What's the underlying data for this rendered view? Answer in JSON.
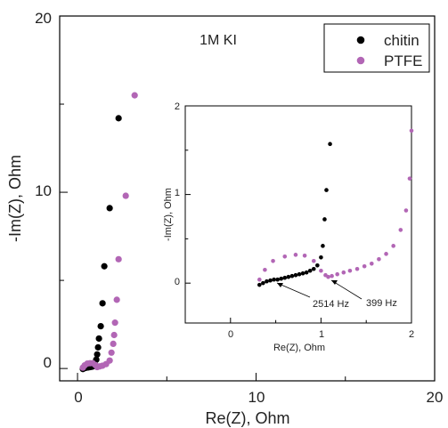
{
  "chart_data": [
    {
      "type": "scatter",
      "title": "",
      "xlabel": "Re(Z), Ohm",
      "ylabel": "-Im(Z), Ohm",
      "xlim": [
        -1,
        20
      ],
      "ylim": [
        -0.7,
        20
      ],
      "xticks": [
        "0",
        "10",
        "20"
      ],
      "yticks": [
        "0",
        "10",
        "20"
      ],
      "annotation": "1M KI",
      "legend": {
        "placement": "top-right",
        "entries": [
          "chitin",
          "PTFE"
        ]
      },
      "series": [
        {
          "name": "chitin",
          "color": "#000000",
          "points": [
            [
              0.3,
              -0.03
            ],
            [
              0.35,
              0.0
            ],
            [
              0.42,
              0.03
            ],
            [
              0.5,
              0.05
            ],
            [
              0.6,
              0.06
            ],
            [
              0.7,
              0.08
            ],
            [
              0.8,
              0.1
            ],
            [
              0.9,
              0.13
            ],
            [
              1.0,
              0.2
            ],
            [
              1.05,
              0.5
            ],
            [
              1.1,
              0.8
            ],
            [
              1.15,
              1.2
            ],
            [
              1.2,
              1.7
            ],
            [
              1.3,
              2.4
            ],
            [
              1.4,
              3.7
            ],
            [
              1.5,
              5.8
            ],
            [
              1.8,
              9.1
            ],
            [
              2.3,
              14.2
            ]
          ]
        },
        {
          "name": "PTFE",
          "color": "#b266b5",
          "points": [
            [
              0.3,
              0.05
            ],
            [
              0.4,
              0.18
            ],
            [
              0.55,
              0.28
            ],
            [
              0.7,
              0.3
            ],
            [
              0.85,
              0.3
            ],
            [
              1.0,
              0.2
            ],
            [
              1.1,
              0.08
            ],
            [
              1.25,
              0.12
            ],
            [
              1.4,
              0.16
            ],
            [
              1.6,
              0.25
            ],
            [
              1.8,
              0.45
            ],
            [
              1.9,
              0.9
            ],
            [
              2.0,
              1.4
            ],
            [
              2.05,
              1.9
            ],
            [
              2.1,
              2.6
            ],
            [
              2.2,
              3.9
            ],
            [
              2.3,
              6.2
            ],
            [
              2.7,
              9.8
            ],
            [
              3.2,
              15.5
            ]
          ]
        }
      ]
    },
    {
      "type": "scatter",
      "title": "",
      "xlabel": "Re(Z), Ohm",
      "ylabel": "-Im(Z), Ohm",
      "xlim": [
        -0.5,
        2
      ],
      "ylim": [
        -0.45,
        2
      ],
      "xticks": [
        "0",
        "1",
        "2"
      ],
      "yticks": [
        "0",
        "1",
        "2"
      ],
      "annotations": [
        {
          "text": "2514 Hz",
          "x": 0.55,
          "y": 0.04
        },
        {
          "text": "399 Hz",
          "x": 1.12,
          "y": 0.06
        }
      ],
      "series": [
        {
          "name": "chitin",
          "color": "#000000",
          "points": [
            [
              0.32,
              -0.02
            ],
            [
              0.36,
              0.0
            ],
            [
              0.4,
              0.02
            ],
            [
              0.44,
              0.03
            ],
            [
              0.48,
              0.04
            ],
            [
              0.52,
              0.04
            ],
            [
              0.56,
              0.05
            ],
            [
              0.6,
              0.06
            ],
            [
              0.64,
              0.07
            ],
            [
              0.68,
              0.08
            ],
            [
              0.72,
              0.09
            ],
            [
              0.76,
              0.1
            ],
            [
              0.8,
              0.11
            ],
            [
              0.84,
              0.12
            ],
            [
              0.88,
              0.14
            ],
            [
              0.92,
              0.16
            ],
            [
              0.96,
              0.2
            ],
            [
              1.0,
              0.29
            ],
            [
              1.02,
              0.42
            ],
            [
              1.04,
              0.72
            ],
            [
              1.06,
              1.05
            ],
            [
              1.1,
              1.57
            ]
          ]
        },
        {
          "name": "PTFE",
          "color": "#b266b5",
          "points": [
            [
              0.32,
              0.04
            ],
            [
              0.38,
              0.15
            ],
            [
              0.47,
              0.25
            ],
            [
              0.6,
              0.3
            ],
            [
              0.72,
              0.32
            ],
            [
              0.82,
              0.31
            ],
            [
              0.92,
              0.25
            ],
            [
              1.0,
              0.14
            ],
            [
              1.05,
              0.09
            ],
            [
              1.08,
              0.07
            ],
            [
              1.12,
              0.08
            ],
            [
              1.18,
              0.1
            ],
            [
              1.25,
              0.12
            ],
            [
              1.32,
              0.14
            ],
            [
              1.4,
              0.16
            ],
            [
              1.48,
              0.19
            ],
            [
              1.56,
              0.22
            ],
            [
              1.64,
              0.27
            ],
            [
              1.72,
              0.33
            ],
            [
              1.8,
              0.42
            ],
            [
              1.88,
              0.6
            ],
            [
              1.94,
              0.82
            ],
            [
              1.98,
              1.18
            ],
            [
              2.0,
              1.72
            ]
          ]
        }
      ]
    }
  ]
}
